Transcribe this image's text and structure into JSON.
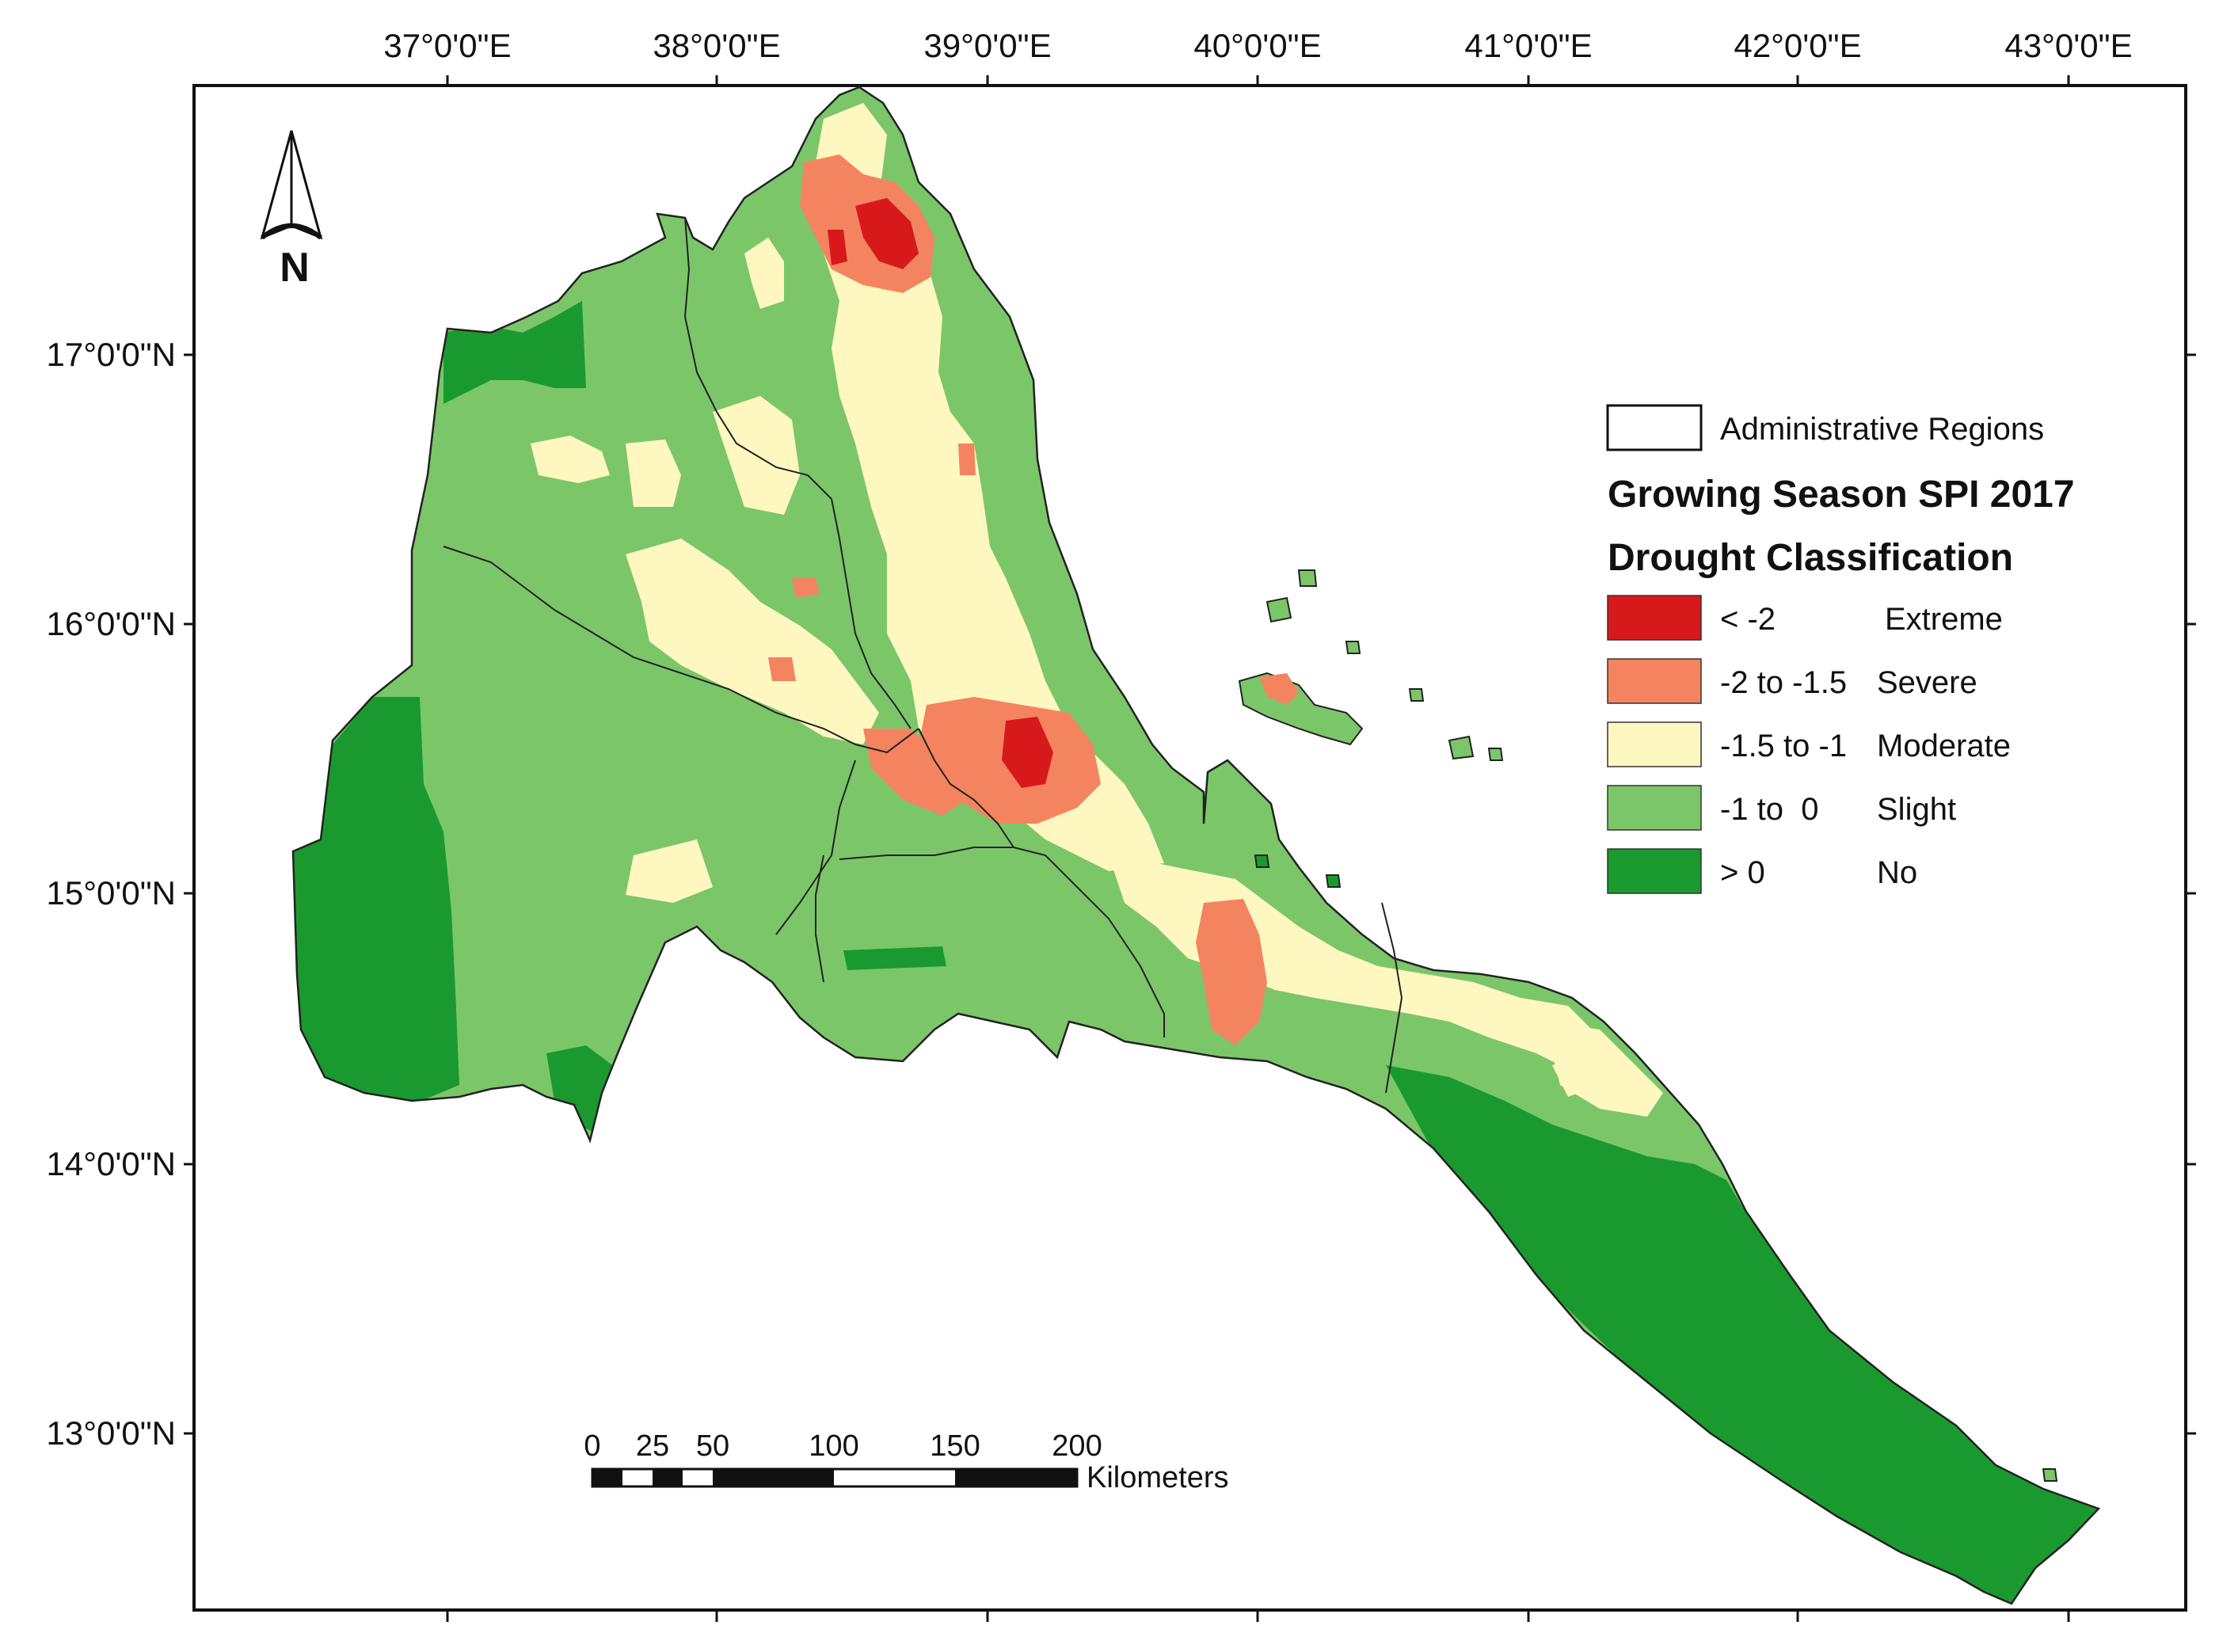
{
  "map": {
    "x_axis": {
      "labels": [
        "37°0'0\"E",
        "38°0'0\"E",
        "39°0'0\"E",
        "40°0'0\"E",
        "41°0'0\"E",
        "42°0'0\"E",
        "43°0'0\"E"
      ]
    },
    "y_axis": {
      "labels": [
        "17°0'0\"N",
        "16°0'0\"N",
        "15°0'0\"N",
        "14°0'0\"N",
        "13°0'0\"N"
      ]
    },
    "north_arrow": {
      "label": "N",
      "icon": "north-arrow-icon"
    },
    "legend": {
      "boundary_label": "Administrative Regions",
      "title": "Growing Season SPI 2017",
      "subtitle": "Drought Classification",
      "classes": [
        {
          "range": "< -2",
          "name": "Extreme",
          "color": "#d7191c"
        },
        {
          "range": "-2 to -1.5",
          "name": "Severe",
          "color": "#f4845f"
        },
        {
          "range": "-1.5 to -1",
          "name": "Moderate",
          "color": "#fff7c0"
        },
        {
          "range": "-1 to  0",
          "name": "Slight",
          "color": "#7cc66a"
        },
        {
          "range": "> 0",
          "name": "No",
          "color": "#1a9a2e"
        }
      ]
    },
    "scale_bar": {
      "ticks": [
        "0",
        "25",
        "50",
        "100",
        "150",
        "200"
      ],
      "unit": "Kilometers"
    }
  }
}
